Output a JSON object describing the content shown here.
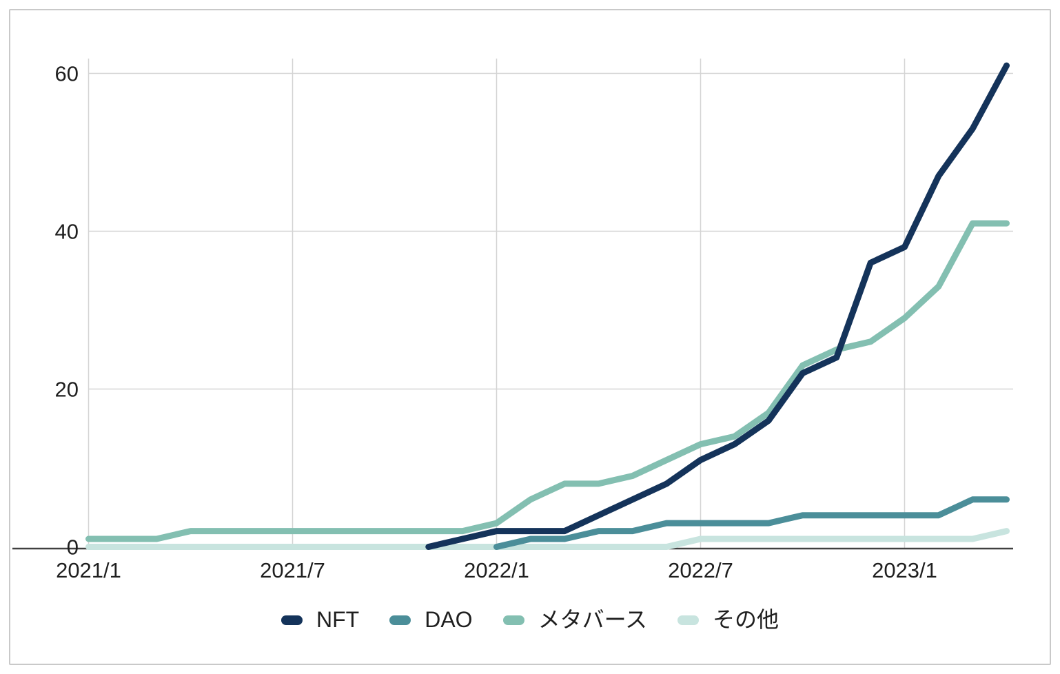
{
  "chart_data": {
    "type": "line",
    "x": [
      "2021/1",
      "2021/2",
      "2021/3",
      "2021/4",
      "2021/5",
      "2021/6",
      "2021/7",
      "2021/8",
      "2021/9",
      "2021/10",
      "2021/11",
      "2021/12",
      "2022/1",
      "2022/2",
      "2022/3",
      "2022/4",
      "2022/5",
      "2022/6",
      "2022/7",
      "2022/8",
      "2022/9",
      "2022/10",
      "2022/11",
      "2022/12",
      "2023/1",
      "2023/2",
      "2023/3",
      "2023/4"
    ],
    "x_tick_indices": [
      0,
      6,
      12,
      18,
      24
    ],
    "x_tick_labels": [
      "2021/1",
      "2021/7",
      "2022/1",
      "2022/7",
      "2023/1"
    ],
    "y_ticks": [
      0,
      20,
      40,
      60
    ],
    "y_tick_labels": [
      "0",
      "20",
      "40",
      "60"
    ],
    "ylim": [
      0,
      62
    ],
    "grid": true,
    "legend_position": "bottom",
    "series": [
      {
        "name": "NFT",
        "color": "#14335a",
        "values": [
          null,
          null,
          null,
          null,
          null,
          null,
          null,
          null,
          null,
          null,
          0,
          1,
          2,
          2,
          2,
          4,
          6,
          8,
          11,
          13,
          16,
          22,
          24,
          36,
          38,
          47,
          53,
          61
        ]
      },
      {
        "name": "DAO",
        "color": "#4b8e99",
        "values": [
          null,
          null,
          null,
          null,
          null,
          null,
          null,
          null,
          null,
          null,
          null,
          null,
          0,
          1,
          1,
          2,
          2,
          3,
          3,
          3,
          3,
          4,
          4,
          4,
          4,
          4,
          6,
          6
        ]
      },
      {
        "name": "メタバース",
        "color": "#83bfb1",
        "values": [
          1,
          1,
          1,
          2,
          2,
          2,
          2,
          2,
          2,
          2,
          2,
          2,
          3,
          6,
          8,
          8,
          9,
          11,
          13,
          14,
          17,
          23,
          25,
          26,
          29,
          33,
          41,
          41
        ]
      },
      {
        "name": "その他",
        "color": "#c8e4df",
        "values": [
          0,
          0,
          0,
          0,
          0,
          0,
          0,
          0,
          0,
          0,
          0,
          0,
          0,
          0,
          0,
          0,
          0,
          0,
          1,
          1,
          1,
          1,
          1,
          1,
          1,
          1,
          1,
          2
        ]
      }
    ]
  },
  "style": {
    "grid_color": "#d4d4d4",
    "axis_color": "#404040",
    "tick_text_color": "#1f1f1f",
    "background": "#ffffff",
    "card_border_color": "#c9c9c9",
    "line_width": 9
  }
}
